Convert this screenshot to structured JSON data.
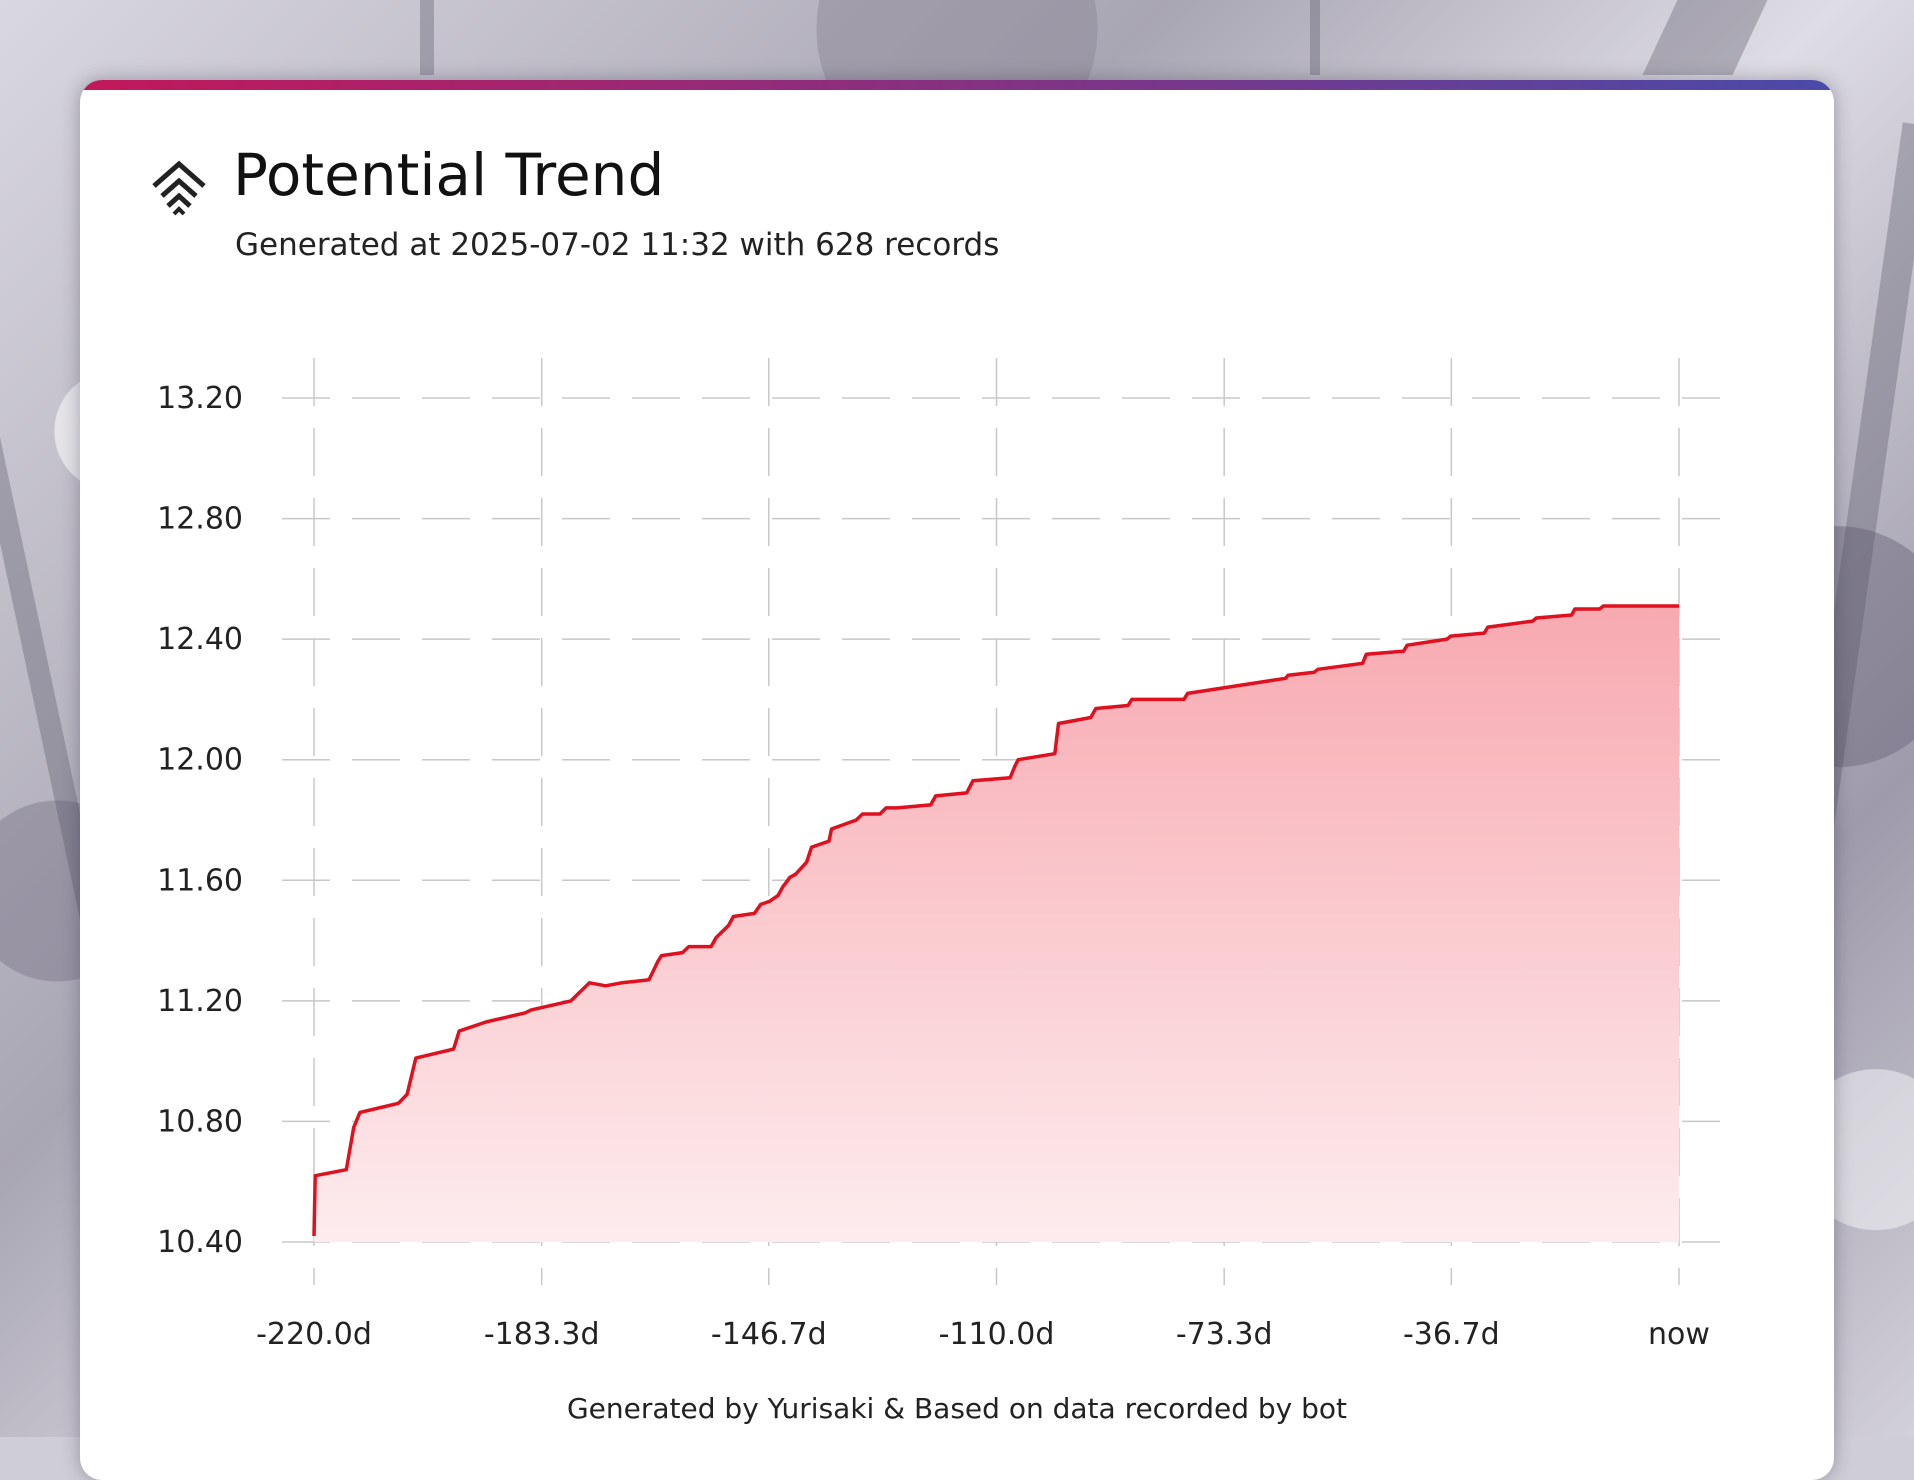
{
  "header": {
    "title": "Potential Trend",
    "subtitle": "Generated at 2025-07-02 11:32 with 628 records",
    "logo_icon": "chevron-stack-icon"
  },
  "footer": {
    "text": "Generated by Yurisaki & Based on data recorded by bot"
  },
  "colors": {
    "accent_gradient": [
      "#c2185b",
      "#4a4aa8"
    ],
    "line": "#e0101f",
    "fill_top": "#f7a9b0",
    "fill_bottom": "#fdecee",
    "grid": "#c8c8c8"
  },
  "chart_data": {
    "type": "area",
    "title": "Potential Trend",
    "xlabel": "",
    "ylabel": "",
    "xlim": [
      -220.0,
      0
    ],
    "ylim": [
      10.38,
      13.33
    ],
    "xticks": [
      -220.0,
      -183.3,
      -146.7,
      -110.0,
      -73.3,
      -36.7,
      0
    ],
    "xtick_labels": [
      "-220.0d",
      "-183.3d",
      "-146.7d",
      "-110.0d",
      "-73.3d",
      "-36.7d",
      "now"
    ],
    "yticks": [
      10.4,
      10.8,
      11.2,
      11.6,
      12.0,
      12.4,
      12.8,
      13.2
    ],
    "ytick_labels": [
      "10.40",
      "10.80",
      "11.20",
      "11.60",
      "12.00",
      "12.40",
      "12.80",
      "13.20"
    ],
    "grid": true,
    "legend": "none",
    "series": [
      {
        "x": [
          -220.0,
          -219.8,
          -214.8,
          -213.6,
          -212.6,
          -206.4,
          -205.0,
          -203.6,
          -197.5,
          -196.6,
          -192.3,
          -186.0,
          -185.0,
          -178.6,
          -177.1,
          -175.6,
          -173.0,
          -170.4,
          -166.0,
          -164.6,
          -164.0,
          -160.6,
          -159.6,
          -156.0,
          -155.2,
          -153.2,
          -152.4,
          -149.0,
          -148.0,
          -146.6,
          -145.2,
          -144.4,
          -144.0,
          -143.3,
          -142.4,
          -140.6,
          -139.8,
          -137.0,
          -136.6,
          -132.6,
          -131.6,
          -128.8,
          -127.8,
          -126.0,
          -120.6,
          -119.8,
          -114.8,
          -113.8,
          -107.8,
          -107.0,
          -106.5,
          -100.6,
          -100.0,
          -94.8,
          -94.0,
          -88.8,
          -88.2,
          -79.8,
          -79.2,
          -63.4,
          -63.0,
          -58.8,
          -58.2,
          -51.0,
          -50.4,
          -44.4,
          -43.8,
          -37.4,
          -36.8,
          -31.4,
          -30.8,
          -23.6,
          -23.0,
          -17.3,
          -16.8,
          -12.8,
          -12.2,
          0
        ],
        "y": [
          10.42,
          10.62,
          10.64,
          10.78,
          10.83,
          10.86,
          10.89,
          11.01,
          11.04,
          11.1,
          11.13,
          11.16,
          11.17,
          11.2,
          11.23,
          11.26,
          11.25,
          11.26,
          11.27,
          11.33,
          11.35,
          11.36,
          11.38,
          11.38,
          11.41,
          11.45,
          11.48,
          11.49,
          11.52,
          11.53,
          11.55,
          11.58,
          11.59,
          11.61,
          11.62,
          11.66,
          11.71,
          11.73,
          11.77,
          11.8,
          11.82,
          11.82,
          11.84,
          11.84,
          11.85,
          11.88,
          11.89,
          11.93,
          11.94,
          11.98,
          12.0,
          12.02,
          12.12,
          12.14,
          12.17,
          12.18,
          12.2,
          12.2,
          12.22,
          12.27,
          12.28,
          12.29,
          12.3,
          12.32,
          12.35,
          12.36,
          12.38,
          12.4,
          12.41,
          12.42,
          12.44,
          12.46,
          12.47,
          12.48,
          12.5,
          12.5,
          12.51,
          12.51
        ]
      }
    ]
  }
}
